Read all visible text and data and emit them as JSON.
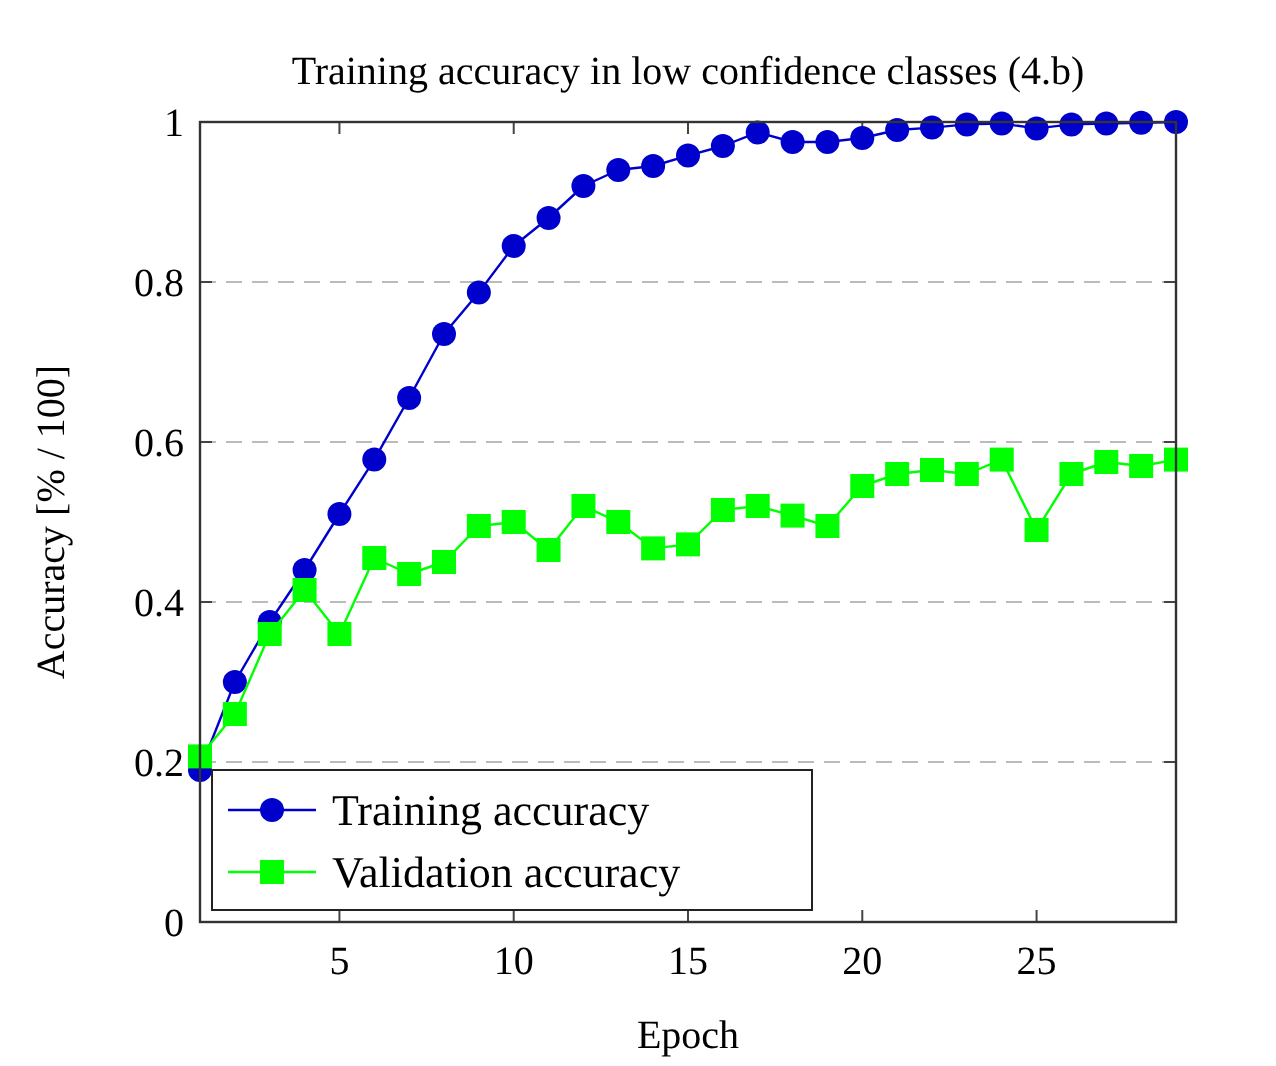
{
  "chart_data": {
    "type": "line",
    "title": "Training accuracy in low confidence classes (4.b)",
    "xlabel": "Epoch",
    "ylabel": "Accuracy [% / 100]",
    "x": [
      1,
      2,
      3,
      4,
      5,
      6,
      7,
      8,
      9,
      10,
      11,
      12,
      13,
      14,
      15,
      16,
      17,
      18,
      19,
      20,
      21,
      22,
      23,
      24,
      25,
      26,
      27,
      28,
      29
    ],
    "series": [
      {
        "name": "Training accuracy",
        "color": "#0000cc",
        "marker": "circle",
        "values": [
          0.19,
          0.3,
          0.375,
          0.44,
          0.51,
          0.578,
          0.655,
          0.735,
          0.787,
          0.845,
          0.88,
          0.92,
          0.94,
          0.945,
          0.958,
          0.97,
          0.987,
          0.975,
          0.975,
          0.98,
          0.99,
          0.993,
          0.997,
          0.998,
          0.992,
          0.997,
          0.998,
          0.999,
          1.0
        ]
      },
      {
        "name": "Validation accuracy",
        "color": "#00ff00",
        "marker": "square",
        "values": [
          0.207,
          0.26,
          0.36,
          0.415,
          0.36,
          0.455,
          0.435,
          0.45,
          0.495,
          0.5,
          0.465,
          0.52,
          0.5,
          0.467,
          0.472,
          0.515,
          0.52,
          0.508,
          0.495,
          0.545,
          0.56,
          0.565,
          0.56,
          0.578,
          0.49,
          0.56,
          0.575,
          0.57,
          0.578
        ]
      }
    ],
    "xlim": [
      1,
      29
    ],
    "xticks": [
      5,
      10,
      15,
      20,
      25
    ],
    "ylim": [
      0,
      1
    ],
    "yticks": [
      0,
      0.2,
      0.4,
      0.6,
      0.8,
      1
    ],
    "grid": "y",
    "legend": "bottom left",
    "line_style": "solid"
  }
}
